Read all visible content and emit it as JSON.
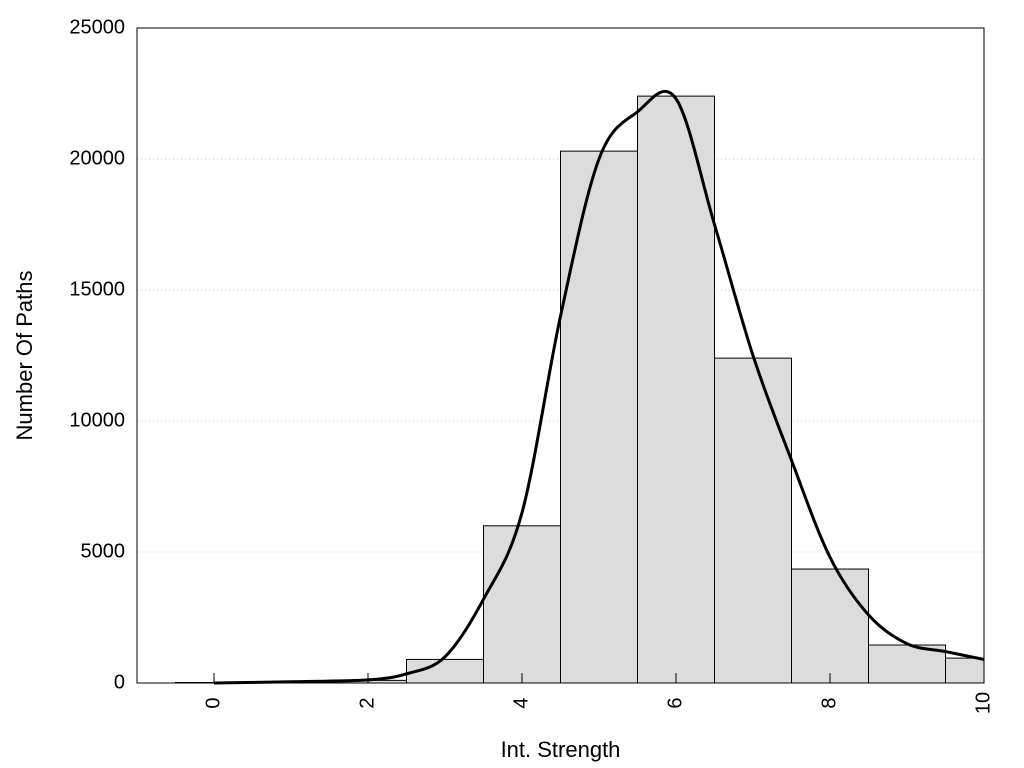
{
  "chart_data": {
    "type": "bar",
    "title": "",
    "xlabel": "Int. Strength",
    "ylabel": "Number Of Paths",
    "xlim": [
      -1,
      10
    ],
    "ylim": [
      0,
      25000
    ],
    "grid": "horizontal-dotted",
    "legend": "none",
    "x_ticks": [
      0,
      2,
      4,
      6,
      8,
      10
    ],
    "y_ticks": [
      0,
      5000,
      10000,
      15000,
      20000,
      25000
    ],
    "bars": {
      "x": [
        0,
        1,
        2,
        3,
        4,
        5,
        6,
        7,
        8,
        9,
        10
      ],
      "values": [
        20,
        50,
        100,
        900,
        6000,
        20300,
        22400,
        12400,
        4350,
        1450,
        950
      ],
      "fill": "#dcdcdc",
      "stroke": "#000000"
    },
    "curve": {
      "x": [
        0,
        1,
        2,
        2.5,
        3,
        3.5,
        4,
        4.5,
        5,
        5.5,
        6,
        6.5,
        7,
        7.5,
        8,
        8.5,
        9,
        9.5,
        10
      ],
      "values": [
        0,
        50,
        120,
        350,
        1000,
        3200,
        6500,
        14000,
        20000,
        21800,
        22300,
        17500,
        12500,
        8500,
        4800,
        2600,
        1500,
        1200,
        900
      ],
      "stroke": "#000000"
    }
  }
}
